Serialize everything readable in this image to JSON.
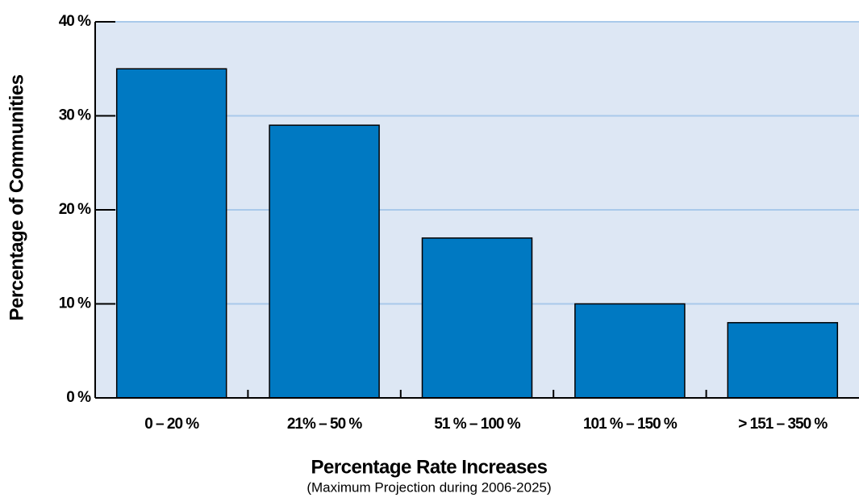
{
  "chart_data": {
    "type": "bar",
    "xlabel": "Percentage Rate Increases",
    "xlabel_note": "(Maximum Projection during 2006-2025)",
    "ylabel": "Percentage of Communities",
    "categories": [
      "0 – 20 %",
      "21% – 50 %",
      "51 % – 100 %",
      "101 % – 150 %",
      "> 151 – 350 %"
    ],
    "values": [
      35,
      29,
      17,
      10,
      8
    ],
    "color": "#0079c2",
    "background": "#dde7f4",
    "grid_color": "#a9c9ea",
    "ylim": [
      0,
      40
    ],
    "yticks": [
      {
        "value": 0,
        "label": "0 %"
      },
      {
        "value": 10,
        "label": "10 %"
      },
      {
        "value": 20,
        "label": "20 %"
      },
      {
        "value": 30,
        "label": "30 %"
      },
      {
        "value": 40,
        "label": "40 %"
      }
    ],
    "grid": true
  }
}
